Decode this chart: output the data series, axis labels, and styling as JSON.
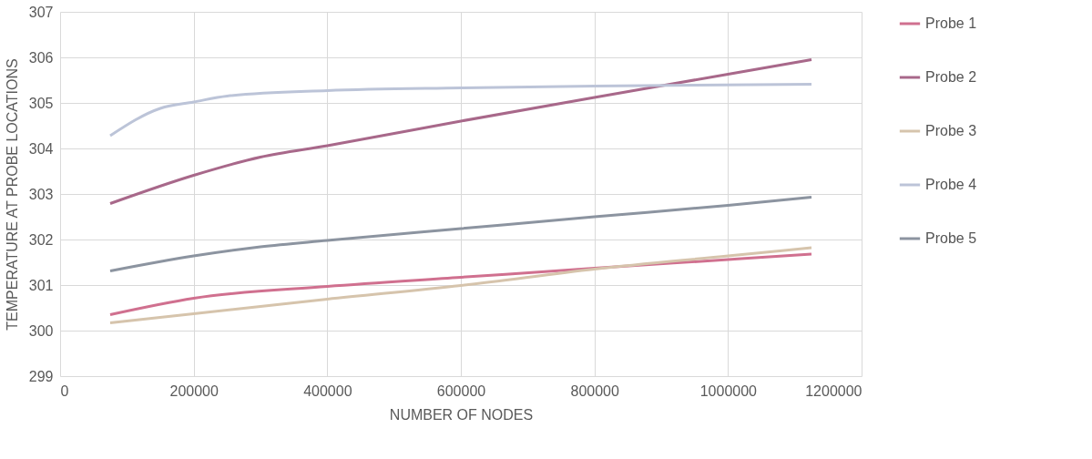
{
  "chart_data": {
    "type": "line",
    "xlabel": "NUMBER OF NODES",
    "ylabel": "TEMPERATURE AT PROBE LOCATIONS",
    "xlim": [
      0,
      1200000
    ],
    "xticks": [
      0,
      200000,
      400000,
      600000,
      800000,
      1000000,
      1200000
    ],
    "ylim": [
      299,
      307
    ],
    "yticks": [
      299,
      300,
      301,
      302,
      303,
      304,
      305,
      306,
      307
    ],
    "grid": true,
    "legend": "right",
    "marker": "none",
    "line_style": "solid",
    "series": [
      {
        "name": "Probe 1",
        "color": "#d0708f",
        "x": [
          75000,
          200000,
          400000,
          600000,
          800000,
          1000000,
          1125000
        ],
        "values": [
          300.35,
          300.71,
          300.97,
          301.17,
          301.37,
          301.56,
          301.68
        ]
      },
      {
        "name": "Probe 2",
        "color": "#a8688a",
        "x": [
          75000,
          200000,
          300000,
          400000,
          600000,
          800000,
          1000000,
          1125000
        ],
        "values": [
          302.79,
          303.41,
          303.81,
          304.06,
          304.6,
          305.12,
          305.63,
          305.95
        ]
      },
      {
        "name": "Probe 3",
        "color": "#d6c4ac",
        "x": [
          75000,
          200000,
          400000,
          600000,
          800000,
          1000000,
          1125000
        ],
        "values": [
          300.17,
          300.37,
          300.69,
          300.99,
          301.35,
          301.64,
          301.82
        ]
      },
      {
        "name": "Probe 4",
        "color": "#bcc4d8",
        "x": [
          75000,
          150000,
          200000,
          250000,
          400000,
          600000,
          800000,
          1125000
        ],
        "values": [
          304.28,
          304.88,
          305.02,
          305.15,
          305.27,
          305.33,
          305.37,
          305.41
        ]
      },
      {
        "name": "Probe 5",
        "color": "#8c94a0",
        "x": [
          75000,
          200000,
          300000,
          400000,
          600000,
          800000,
          1000000,
          1125000
        ],
        "values": [
          301.31,
          301.64,
          301.84,
          301.98,
          302.24,
          302.5,
          302.75,
          302.93
        ]
      }
    ]
  }
}
